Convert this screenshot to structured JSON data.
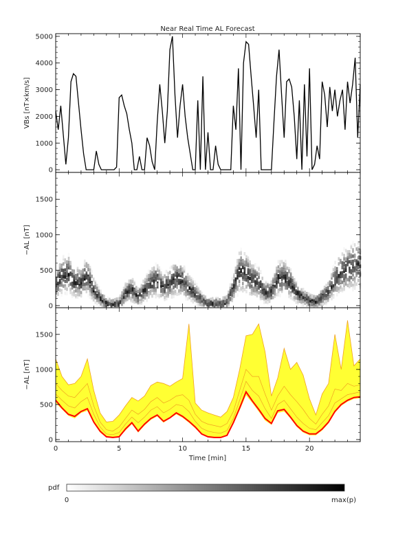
{
  "figure": {
    "title": "Near Real Time AL Forecast",
    "xlabel": "Time [min]",
    "colorbar": {
      "label": "pdf",
      "min_label": "0",
      "max_label": "max(p)"
    }
  },
  "chart_data": [
    {
      "type": "line",
      "panel": "top",
      "ylabel": "VBs [nT×km/s]",
      "xlim": [
        0,
        24
      ],
      "ylim": [
        -100,
        5100
      ],
      "yticks": [
        0,
        1000,
        2000,
        3000,
        4000,
        5000
      ],
      "xticks": [
        0,
        5,
        10,
        15,
        20
      ],
      "series": [
        {
          "x": [
            0,
            0.2,
            0.4,
            0.6,
            0.8,
            1.0,
            1.2,
            1.4,
            1.6,
            1.8,
            2.0,
            2.2,
            2.4,
            2.6,
            2.8,
            3.0,
            3.2,
            3.4,
            3.6,
            3.8,
            4.0,
            4.2,
            4.4,
            4.6,
            4.8,
            5.0,
            5.2,
            5.4,
            5.6,
            5.8,
            6.0,
            6.2,
            6.4,
            6.6,
            6.8,
            7.0,
            7.2,
            7.4,
            7.6,
            7.8,
            8.0,
            8.2,
            8.4,
            8.6,
            8.8,
            9.0,
            9.2,
            9.4,
            9.6,
            9.8,
            10.0,
            10.2,
            10.4,
            10.6,
            10.8,
            11.0,
            11.2,
            11.4,
            11.6,
            11.8,
            12.0,
            12.2,
            12.4,
            12.6,
            12.8,
            13.0,
            13.2,
            13.4,
            13.6,
            13.8,
            14.0,
            14.2,
            14.4,
            14.6,
            14.8,
            15.0,
            15.2,
            15.4,
            15.6,
            15.8,
            16.0,
            16.2,
            16.4,
            16.6,
            16.8,
            17.0,
            17.2,
            17.4,
            17.6,
            17.8,
            18.0,
            18.2,
            18.4,
            18.6,
            18.8,
            19.0,
            19.2,
            19.4,
            19.6,
            19.8,
            20.0,
            20.2,
            20.4,
            20.6,
            20.8,
            21.0,
            21.2,
            21.4,
            21.6,
            21.8,
            22.0,
            22.2,
            22.4,
            22.6,
            22.8,
            23.0,
            23.2,
            23.4,
            23.6,
            23.8,
            24.0
          ],
          "y": [
            2200,
            1500,
            2400,
            1300,
            200,
            1200,
            3300,
            3600,
            3500,
            2500,
            1500,
            600,
            0,
            0,
            0,
            0,
            700,
            200,
            0,
            0,
            0,
            0,
            0,
            0,
            100,
            2700,
            2800,
            2400,
            2100,
            1500,
            1000,
            0,
            0,
            500,
            0,
            0,
            1200,
            900,
            300,
            0,
            1800,
            3200,
            2200,
            1000,
            2200,
            4500,
            5000,
            2800,
            1200,
            2400,
            3200,
            2000,
            1200,
            600,
            0,
            0,
            2600,
            0,
            3500,
            0,
            1400,
            0,
            0,
            900,
            200,
            0,
            0,
            0,
            0,
            0,
            2400,
            1500,
            3800,
            0,
            4000,
            4800,
            4700,
            3500,
            2400,
            1200,
            3000,
            0,
            0,
            0,
            0,
            0,
            1800,
            3500,
            4500,
            2800,
            1200,
            3300,
            3400,
            3100,
            2000,
            400,
            2600,
            0,
            3200,
            500,
            3800,
            0,
            200,
            900,
            400,
            3300,
            2800,
            1600,
            3100,
            2200,
            3000,
            2000,
            2600,
            3000,
            1500,
            3300,
            2500,
            3200,
            4200,
            1200,
            3200
          ]
        }
      ]
    },
    {
      "type": "heatmap",
      "panel": "middle",
      "ylabel": "−AL [nT]",
      "xlim": [
        0,
        24
      ],
      "ylim": [
        -30,
        1880
      ],
      "yticks": [
        0,
        500,
        1000,
        1500
      ],
      "xticks": [
        0,
        5,
        10,
        15,
        20
      ],
      "colormap": [
        "#ffffff",
        "#000000"
      ],
      "ridge_x": [
        0,
        0.5,
        1,
        1.5,
        2,
        2.5,
        3,
        3.5,
        4,
        4.5,
        5,
        5.5,
        6,
        6.5,
        7,
        7.5,
        8,
        8.5,
        9,
        9.5,
        10,
        10.5,
        11,
        11.5,
        12,
        12.5,
        13,
        13.5,
        14,
        14.5,
        15,
        15.5,
        16,
        16.5,
        17,
        17.5,
        18,
        18.5,
        19,
        19.5,
        20,
        20.5,
        21,
        21.5,
        22,
        22.5,
        23,
        23.5,
        24
      ],
      "ridge_y": [
        300,
        420,
        450,
        330,
        320,
        430,
        220,
        110,
        30,
        20,
        30,
        170,
        230,
        120,
        220,
        320,
        360,
        260,
        320,
        390,
        360,
        250,
        180,
        80,
        30,
        30,
        30,
        50,
        250,
        500,
        460,
        360,
        330,
        180,
        200,
        380,
        410,
        320,
        180,
        120,
        70,
        50,
        120,
        190,
        370,
        480,
        520,
        560,
        590
      ]
    },
    {
      "type": "area",
      "panel": "bottom",
      "ylabel": "−AL [nT]",
      "xlim": [
        0,
        24
      ],
      "ylim": [
        -30,
        1880
      ],
      "yticks": [
        0,
        500,
        1000,
        1500
      ],
      "xticks": [
        0,
        5,
        10,
        15,
        20
      ],
      "colors": {
        "band": "#ffff33",
        "edges": "#f0a020",
        "median": "#ff0000"
      },
      "x": [
        0,
        0.5,
        1,
        1.5,
        2,
        2.5,
        3,
        3.5,
        4,
        4.5,
        5,
        5.5,
        6,
        6.5,
        7,
        7.5,
        8,
        8.5,
        9,
        9.5,
        10,
        10.5,
        11,
        11.5,
        12,
        12.5,
        13,
        13.5,
        14,
        14.5,
        15,
        15.5,
        16,
        16.5,
        17,
        17.5,
        18,
        18.5,
        19,
        19.5,
        20,
        20.5,
        21,
        21.5,
        22,
        22.5,
        23,
        23.5,
        24
      ],
      "median": [
        560,
        450,
        360,
        330,
        400,
        440,
        250,
        120,
        40,
        30,
        40,
        150,
        240,
        120,
        220,
        300,
        350,
        260,
        310,
        380,
        330,
        260,
        180,
        80,
        40,
        30,
        30,
        60,
        240,
        450,
        680,
        550,
        430,
        300,
        230,
        410,
        430,
        320,
        200,
        120,
        80,
        80,
        150,
        250,
        400,
        500,
        560,
        600,
        610
      ],
      "upper": [
        1150,
        900,
        780,
        800,
        900,
        1150,
        700,
        380,
        250,
        260,
        350,
        480,
        600,
        550,
        620,
        770,
        820,
        800,
        760,
        820,
        870,
        1650,
        520,
        420,
        380,
        350,
        320,
        400,
        600,
        1000,
        1480,
        1500,
        1650,
        1250,
        620,
        880,
        1300,
        1000,
        1100,
        920,
        580,
        350,
        650,
        800,
        1500,
        1000,
        1700,
        1050,
        1150
      ],
      "lower": [
        520,
        430,
        340,
        300,
        380,
        410,
        230,
        100,
        30,
        20,
        30,
        130,
        220,
        100,
        200,
        280,
        330,
        240,
        300,
        360,
        310,
        240,
        160,
        70,
        30,
        20,
        20,
        50,
        220,
        420,
        630,
        520,
        400,
        270,
        210,
        380,
        400,
        300,
        180,
        100,
        60,
        60,
        130,
        230,
        380,
        480,
        540,
        580,
        590
      ],
      "quantile_lines": [
        [
          800,
          700,
          620,
          600,
          700,
          800,
          480,
          250,
          140,
          120,
          180,
          300,
          420,
          360,
          430,
          540,
          600,
          520,
          560,
          620,
          640,
          560,
          360,
          260,
          220,
          200,
          180,
          230,
          400,
          700,
          1000,
          900,
          900,
          650,
          420,
          620,
          760,
          640,
          540,
          430,
          300,
          220,
          360,
          480,
          720,
          700,
          800,
          760,
          780
        ],
        [
          650,
          560,
          480,
          450,
          540,
          600,
          360,
          180,
          80,
          70,
          100,
          220,
          320,
          240,
          320,
          420,
          470,
          380,
          430,
          500,
          480,
          400,
          260,
          160,
          120,
          100,
          90,
          130,
          300,
          560,
          830,
          700,
          620,
          440,
          300,
          500,
          560,
          440,
          320,
          230,
          160,
          140,
          240,
          340,
          520,
          580,
          640,
          660,
          680
        ]
      ]
    }
  ]
}
